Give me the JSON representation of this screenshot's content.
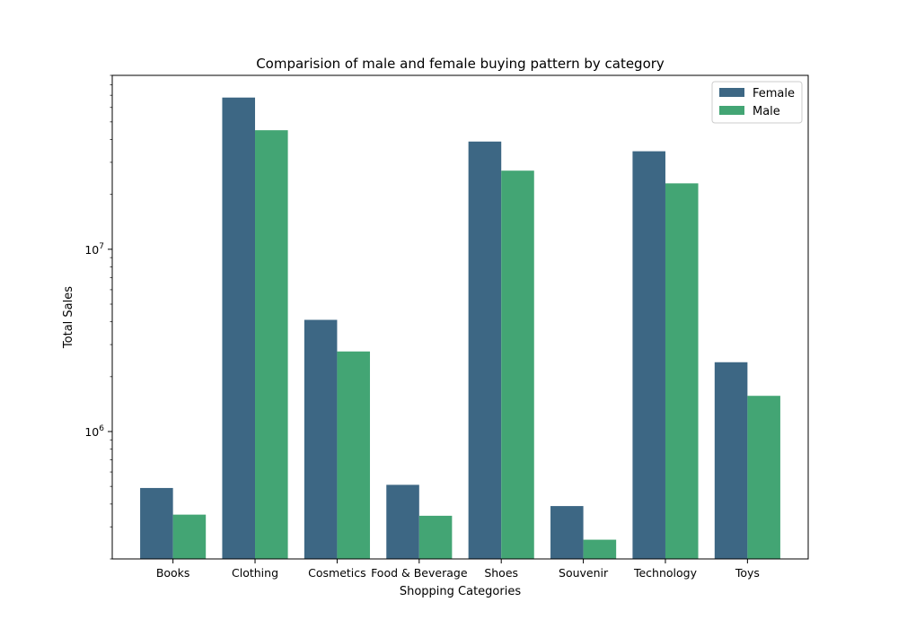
{
  "chart_data": {
    "type": "bar",
    "title": "Comparision of male and female buying pattern by category",
    "xlabel": "Shopping Categories",
    "ylabel": "Total Sales",
    "yscale": "log",
    "ylim": [
      200000,
      90000000
    ],
    "grid": false,
    "legend_position": "top-right",
    "categories": [
      "Books",
      "Clothing",
      "Cosmetics",
      "Food & Beverage",
      "Shoes",
      "Souvenir",
      "Technology",
      "Toys"
    ],
    "series": [
      {
        "name": "Female",
        "color": "#3d6784",
        "values": [
          490000,
          68000000,
          4100000,
          510000,
          39000000,
          390000,
          34500000,
          2400000
        ]
      },
      {
        "name": "Male",
        "color": "#43a574",
        "values": [
          350000,
          45000000,
          2750000,
          345000,
          27000000,
          255000,
          23000000,
          1570000
        ]
      }
    ],
    "y_tick_labels": [
      {
        "value": 1000000,
        "base": "10",
        "exp": "6"
      },
      {
        "value": 10000000,
        "base": "10",
        "exp": "7"
      }
    ]
  }
}
